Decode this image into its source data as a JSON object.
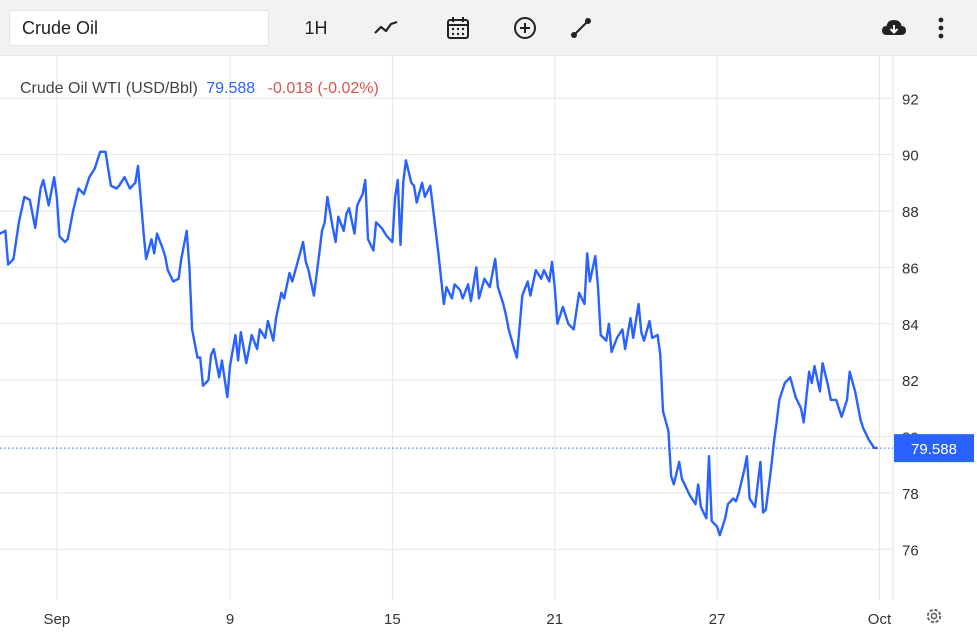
{
  "toolbar": {
    "symbol_value": "Crude Oil",
    "interval_label": "1H",
    "icons": [
      "indicators-icon",
      "calendar-icon",
      "add-compare-icon",
      "drawing-tool-icon",
      "download-icon",
      "more-options-icon"
    ]
  },
  "legend": {
    "name": "Crude Oil WTI (USD/Bbl)",
    "price": "79.588",
    "change": "-0.018 (-0.02%)"
  },
  "colors": {
    "line": "#2962ff",
    "grid": "#e6e6e6",
    "negative": "#d9534f",
    "toolbar_bg": "#f2f2f2"
  },
  "chart_data": {
    "type": "line",
    "title": "",
    "xlabel": "",
    "ylabel": "",
    "ylim": [
      74.2,
      93.5
    ],
    "y_ticks": [
      76,
      78,
      80,
      82,
      84,
      86,
      88,
      90,
      92
    ],
    "x_ticks": [
      {
        "label": "Sep",
        "t": 1.6
      },
      {
        "label": "9",
        "t": 8.0
      },
      {
        "label": "15",
        "t": 14.0
      },
      {
        "label": "21",
        "t": 20.0
      },
      {
        "label": "27",
        "t": 26.0
      },
      {
        "label": "Oct",
        "t": 32.0
      }
    ],
    "xlim": [
      -0.5,
      32.5
    ],
    "last_price": 79.588,
    "last_price_label": "79.588",
    "grid": true,
    "series": [
      {
        "points": [
          [
            -0.5,
            87.2
          ],
          [
            -0.3,
            87.3
          ],
          [
            -0.2,
            86.1
          ],
          [
            0.0,
            86.3
          ],
          [
            0.2,
            87.6
          ],
          [
            0.4,
            88.5
          ],
          [
            0.6,
            88.4
          ],
          [
            0.8,
            87.4
          ],
          [
            1.0,
            88.8
          ],
          [
            1.1,
            89.1
          ],
          [
            1.3,
            88.2
          ],
          [
            1.5,
            89.2
          ],
          [
            1.6,
            88.5
          ],
          [
            1.7,
            87.1
          ],
          [
            1.9,
            86.9
          ],
          [
            2.0,
            87.0
          ],
          [
            2.2,
            88.0
          ],
          [
            2.4,
            88.8
          ],
          [
            2.6,
            88.6
          ],
          [
            2.8,
            89.2
          ],
          [
            3.0,
            89.5
          ],
          [
            3.2,
            90.1
          ],
          [
            3.4,
            90.1
          ],
          [
            3.6,
            88.9
          ],
          [
            3.8,
            88.8
          ],
          [
            3.9,
            88.9
          ],
          [
            4.1,
            89.2
          ],
          [
            4.3,
            88.8
          ],
          [
            4.5,
            89.0
          ],
          [
            4.6,
            89.6
          ],
          [
            4.8,
            87.3
          ],
          [
            4.9,
            86.3
          ],
          [
            5.1,
            87.0
          ],
          [
            5.2,
            86.5
          ],
          [
            5.3,
            87.2
          ],
          [
            5.5,
            86.7
          ],
          [
            5.6,
            86.4
          ],
          [
            5.7,
            85.9
          ],
          [
            5.9,
            85.5
          ],
          [
            6.1,
            85.6
          ],
          [
            6.2,
            86.3
          ],
          [
            6.4,
            87.3
          ],
          [
            6.5,
            86.0
          ],
          [
            6.6,
            83.8
          ],
          [
            6.8,
            82.8
          ],
          [
            6.9,
            82.8
          ],
          [
            7.0,
            81.8
          ],
          [
            7.2,
            82.0
          ],
          [
            7.3,
            82.9
          ],
          [
            7.4,
            83.1
          ],
          [
            7.6,
            82.1
          ],
          [
            7.7,
            82.7
          ],
          [
            7.9,
            81.4
          ],
          [
            8.0,
            82.5
          ],
          [
            8.2,
            83.6
          ],
          [
            8.3,
            82.7
          ],
          [
            8.4,
            83.7
          ],
          [
            8.6,
            82.6
          ],
          [
            8.8,
            83.6
          ],
          [
            9.0,
            83.1
          ],
          [
            9.1,
            83.8
          ],
          [
            9.3,
            83.5
          ],
          [
            9.4,
            84.1
          ],
          [
            9.6,
            83.4
          ],
          [
            9.7,
            84.2
          ],
          [
            9.9,
            85.1
          ],
          [
            10.0,
            84.9
          ],
          [
            10.2,
            85.8
          ],
          [
            10.3,
            85.5
          ],
          [
            10.5,
            86.2
          ],
          [
            10.7,
            86.9
          ],
          [
            10.8,
            86.2
          ],
          [
            10.9,
            85.9
          ],
          [
            11.1,
            85.0
          ],
          [
            11.3,
            86.5
          ],
          [
            11.4,
            87.3
          ],
          [
            11.5,
            87.6
          ],
          [
            11.6,
            88.5
          ],
          [
            11.8,
            87.4
          ],
          [
            11.9,
            86.9
          ],
          [
            12.0,
            87.8
          ],
          [
            12.2,
            87.3
          ],
          [
            12.3,
            87.9
          ],
          [
            12.4,
            88.1
          ],
          [
            12.6,
            87.2
          ],
          [
            12.7,
            88.2
          ],
          [
            12.9,
            88.6
          ],
          [
            13.0,
            89.1
          ],
          [
            13.1,
            87.0
          ],
          [
            13.3,
            86.6
          ],
          [
            13.4,
            87.6
          ],
          [
            13.6,
            87.4
          ],
          [
            13.8,
            87.1
          ],
          [
            14.0,
            86.9
          ],
          [
            14.1,
            88.5
          ],
          [
            14.2,
            89.1
          ],
          [
            14.3,
            86.8
          ],
          [
            14.4,
            89.0
          ],
          [
            14.5,
            89.8
          ],
          [
            14.7,
            89.0
          ],
          [
            14.8,
            88.9
          ],
          [
            14.9,
            88.3
          ],
          [
            15.1,
            89.0
          ],
          [
            15.2,
            88.5
          ],
          [
            15.4,
            88.9
          ],
          [
            15.6,
            87.3
          ],
          [
            15.7,
            86.5
          ],
          [
            15.9,
            84.7
          ],
          [
            16.0,
            85.3
          ],
          [
            16.2,
            84.9
          ],
          [
            16.3,
            85.4
          ],
          [
            16.5,
            85.2
          ],
          [
            16.6,
            84.9
          ],
          [
            16.8,
            85.4
          ],
          [
            16.9,
            84.8
          ],
          [
            17.1,
            86.0
          ],
          [
            17.2,
            84.9
          ],
          [
            17.4,
            85.6
          ],
          [
            17.6,
            85.3
          ],
          [
            17.8,
            86.3
          ],
          [
            17.9,
            85.3
          ],
          [
            18.1,
            84.7
          ],
          [
            18.2,
            84.3
          ],
          [
            18.3,
            83.8
          ],
          [
            18.5,
            83.1
          ],
          [
            18.6,
            82.8
          ],
          [
            18.8,
            85.0
          ],
          [
            19.0,
            85.5
          ],
          [
            19.1,
            85.0
          ],
          [
            19.3,
            85.9
          ],
          [
            19.5,
            85.6
          ],
          [
            19.6,
            85.9
          ],
          [
            19.8,
            85.5
          ],
          [
            19.9,
            86.2
          ],
          [
            20.0,
            85.3
          ],
          [
            20.1,
            84.0
          ],
          [
            20.3,
            84.6
          ],
          [
            20.5,
            84.0
          ],
          [
            20.7,
            83.8
          ],
          [
            20.9,
            85.1
          ],
          [
            21.1,
            84.7
          ],
          [
            21.2,
            86.5
          ],
          [
            21.3,
            85.5
          ],
          [
            21.5,
            86.4
          ],
          [
            21.6,
            85.3
          ],
          [
            21.7,
            83.6
          ],
          [
            21.9,
            83.4
          ],
          [
            22.0,
            84.0
          ],
          [
            22.1,
            83.0
          ],
          [
            22.3,
            83.5
          ],
          [
            22.5,
            83.8
          ],
          [
            22.6,
            83.1
          ],
          [
            22.8,
            84.2
          ],
          [
            22.9,
            83.5
          ],
          [
            23.1,
            84.7
          ],
          [
            23.2,
            83.7
          ],
          [
            23.3,
            83.4
          ],
          [
            23.5,
            84.1
          ],
          [
            23.6,
            83.5
          ],
          [
            23.8,
            83.6
          ],
          [
            23.9,
            82.9
          ],
          [
            24.0,
            80.9
          ],
          [
            24.2,
            80.2
          ],
          [
            24.3,
            78.6
          ],
          [
            24.4,
            78.3
          ],
          [
            24.6,
            79.1
          ],
          [
            24.7,
            78.5
          ],
          [
            24.9,
            78.1
          ],
          [
            25.0,
            77.9
          ],
          [
            25.2,
            77.6
          ],
          [
            25.3,
            78.3
          ],
          [
            25.4,
            77.5
          ],
          [
            25.6,
            77.1
          ],
          [
            25.7,
            79.3
          ],
          [
            25.8,
            77.0
          ],
          [
            26.0,
            76.8
          ],
          [
            26.1,
            76.5
          ],
          [
            26.3,
            77.1
          ],
          [
            26.4,
            77.6
          ],
          [
            26.6,
            77.8
          ],
          [
            26.7,
            77.7
          ],
          [
            26.8,
            78.0
          ],
          [
            27.0,
            78.8
          ],
          [
            27.1,
            79.3
          ],
          [
            27.2,
            77.8
          ],
          [
            27.4,
            77.5
          ],
          [
            27.6,
            79.1
          ],
          [
            27.7,
            77.3
          ],
          [
            27.8,
            77.4
          ],
          [
            28.0,
            78.9
          ],
          [
            28.1,
            79.8
          ],
          [
            28.2,
            80.5
          ],
          [
            28.3,
            81.3
          ],
          [
            28.5,
            81.9
          ],
          [
            28.7,
            82.1
          ],
          [
            28.9,
            81.4
          ],
          [
            29.1,
            81.0
          ],
          [
            29.2,
            80.5
          ],
          [
            29.4,
            82.3
          ],
          [
            29.5,
            81.9
          ],
          [
            29.6,
            82.5
          ],
          [
            29.8,
            81.6
          ],
          [
            29.9,
            82.6
          ],
          [
            30.1,
            81.8
          ],
          [
            30.2,
            81.3
          ],
          [
            30.4,
            81.3
          ],
          [
            30.6,
            80.7
          ],
          [
            30.8,
            81.3
          ],
          [
            30.9,
            82.3
          ],
          [
            31.1,
            81.6
          ],
          [
            31.3,
            80.6
          ],
          [
            31.4,
            80.3
          ],
          [
            31.6,
            79.9
          ],
          [
            31.8,
            79.6
          ],
          [
            31.9,
            79.59
          ]
        ]
      }
    ]
  }
}
